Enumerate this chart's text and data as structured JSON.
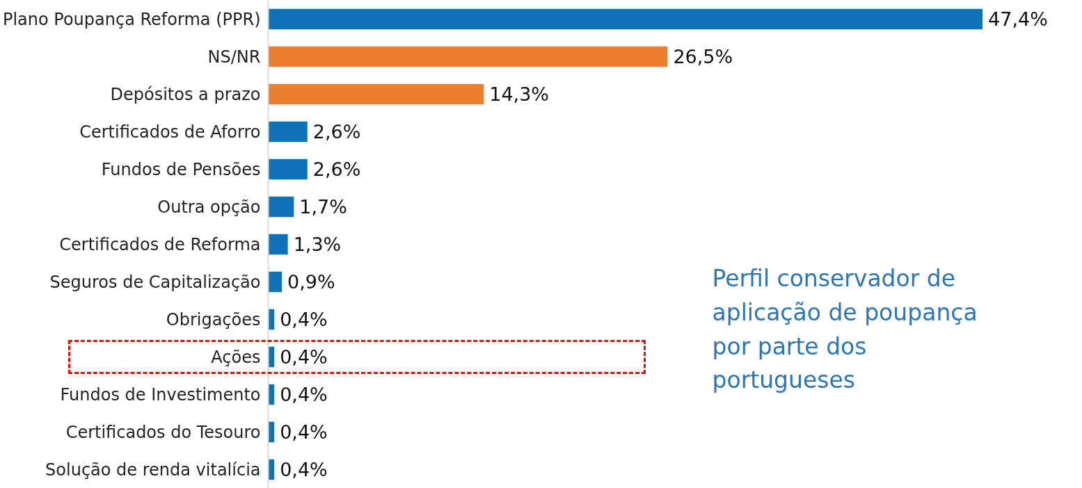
{
  "chart_data": {
    "type": "bar",
    "orientation": "horizontal",
    "categories": [
      "Plano Poupança Reforma (PPR)",
      "NS/NR",
      "Depósitos a prazo",
      "Certificados de Aforro",
      "Fundos de Pensões",
      "Outra opção",
      "Certificados de Reforma",
      "Seguros de Capitalização",
      "Obrigações",
      "Ações",
      "Fundos de Investimento",
      "Certificados do Tesouro",
      "Solução de renda vitalícia"
    ],
    "values": [
      47.4,
      26.5,
      14.3,
      2.6,
      2.6,
      1.7,
      1.3,
      0.9,
      0.4,
      0.4,
      0.4,
      0.4,
      0.4
    ],
    "colors": [
      "#0f72b9",
      "#ed7d31",
      "#ed7d31",
      "#0f72b9",
      "#0f72b9",
      "#0f72b9",
      "#0f72b9",
      "#0f72b9",
      "#0f72b9",
      "#0f72b9",
      "#0f72b9",
      "#0f72b9",
      "#0f72b9"
    ],
    "value_labels": [
      "47,4%",
      "26,5%",
      "14,3%",
      "2,6%",
      "2,6%",
      "1,7%",
      "1,3%",
      "0,9%",
      "0,4%",
      "0,4%",
      "0,4%",
      "0,4%",
      "0,4%"
    ],
    "tick_labels": "y",
    "grid": false,
    "annotations": [
      "Perfil conservador de aplicação de poupança por parte dos portugueses"
    ]
  }
}
